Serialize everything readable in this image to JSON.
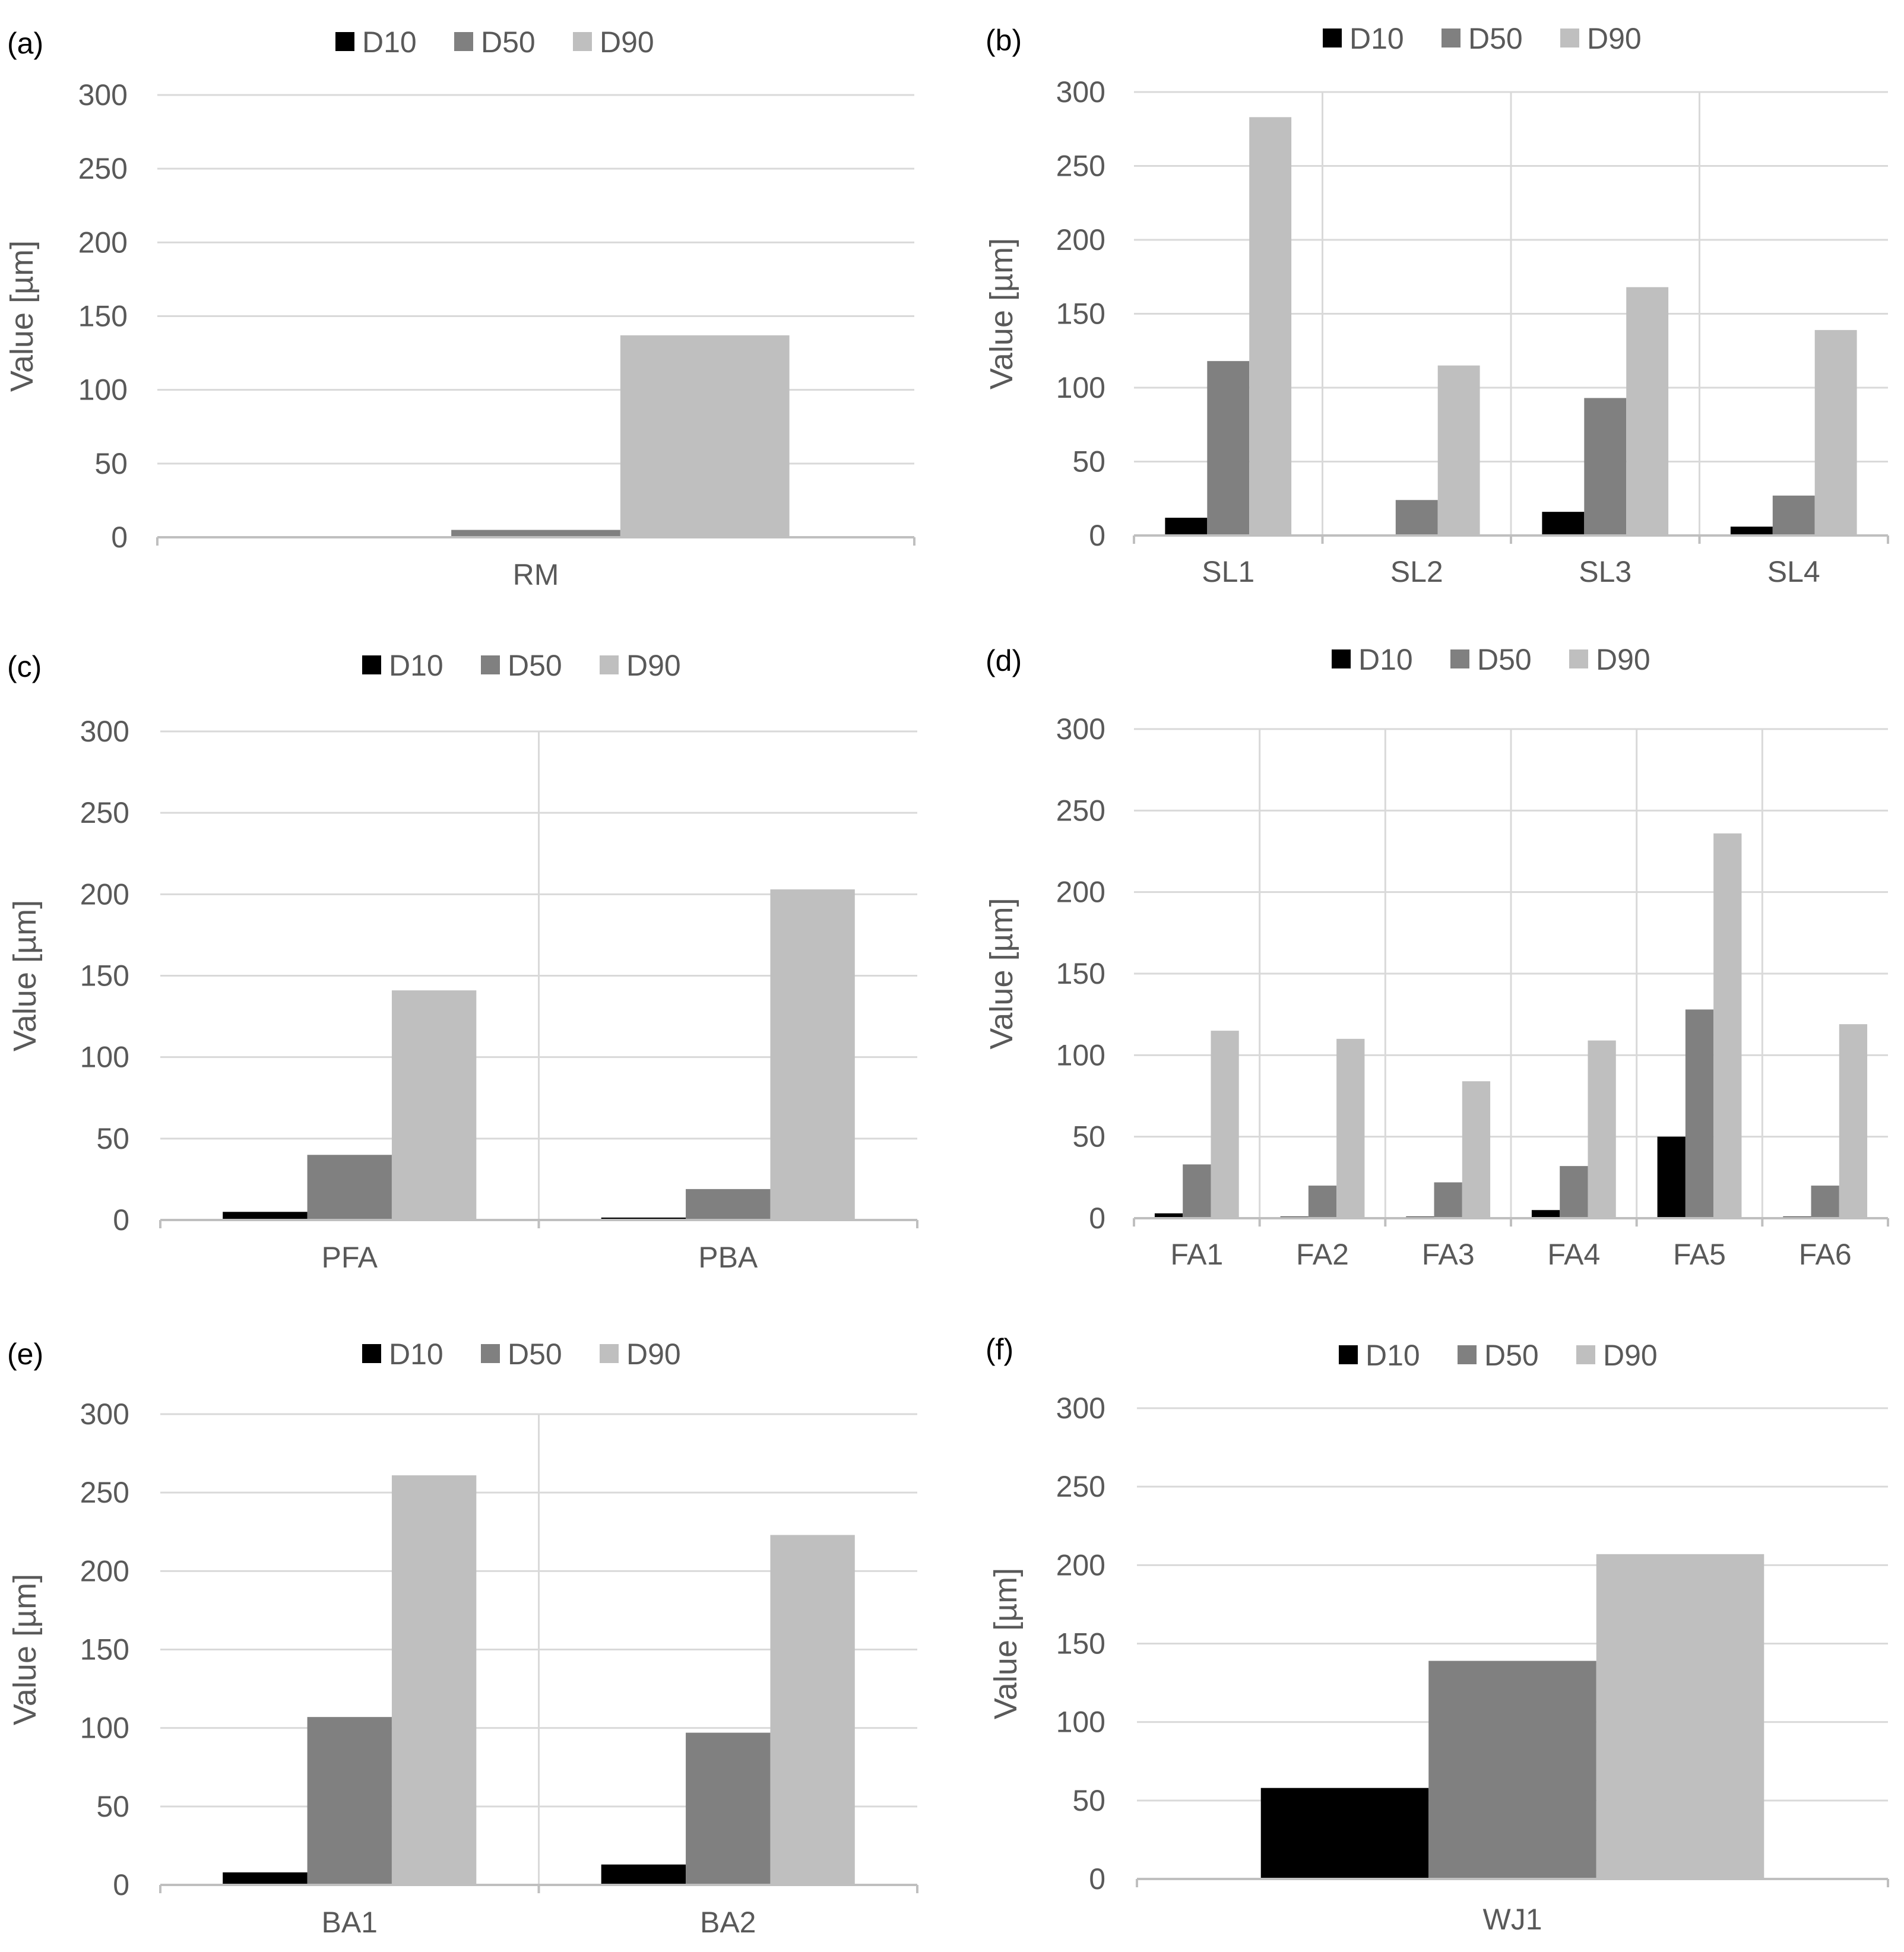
{
  "series_names": [
    "D10",
    "D50",
    "D90"
  ],
  "colors": {
    "D10": "#000000",
    "D50": "#808080",
    "D90": "#bfbfbf",
    "axis": "#bfbfbf",
    "grid": "#d9d9d9",
    "text": "#595959",
    "label": "#000000"
  },
  "chart_data": [
    {
      "panel": "(a)",
      "type": "bar",
      "ylabel": "Value [µm]",
      "ylim": [
        0,
        300
      ],
      "yticks": [
        0,
        50,
        100,
        150,
        200,
        250,
        300
      ],
      "legend": "top",
      "grid": "horizontal",
      "categories": [
        "RM"
      ],
      "series": [
        {
          "name": "D10",
          "values": [
            0.4
          ]
        },
        {
          "name": "D50",
          "values": [
            5
          ]
        },
        {
          "name": "D90",
          "values": [
            137
          ]
        }
      ]
    },
    {
      "panel": "(b)",
      "type": "bar",
      "ylabel": "Value [µm]",
      "ylim": [
        0,
        300
      ],
      "yticks": [
        0,
        50,
        100,
        150,
        200,
        250,
        300
      ],
      "legend": "top",
      "grid": "horizontal and vertical",
      "categories": [
        "SL1",
        "SL2",
        "SL3",
        "SL4"
      ],
      "series": [
        {
          "name": "D10",
          "values": [
            12,
            0.5,
            16,
            6
          ]
        },
        {
          "name": "D50",
          "values": [
            118,
            24,
            93,
            27
          ]
        },
        {
          "name": "D90",
          "values": [
            283,
            115,
            168,
            139
          ]
        }
      ]
    },
    {
      "panel": "(c)",
      "type": "bar",
      "ylabel": "Value [µm]",
      "ylim": [
        0,
        300
      ],
      "yticks": [
        0,
        50,
        100,
        150,
        200,
        250,
        300
      ],
      "legend": "top",
      "grid": "horizontal and vertical",
      "categories": [
        "PFA",
        "PBA"
      ],
      "series": [
        {
          "name": "D10",
          "values": [
            5,
            1.5
          ]
        },
        {
          "name": "D50",
          "values": [
            40,
            19
          ]
        },
        {
          "name": "D90",
          "values": [
            141,
            203
          ]
        }
      ]
    },
    {
      "panel": "(d)",
      "type": "bar",
      "ylabel": "Value [µm]",
      "ylim": [
        0,
        300
      ],
      "yticks": [
        0,
        50,
        100,
        150,
        200,
        250,
        300
      ],
      "legend": "top",
      "grid": "horizontal and vertical",
      "categories": [
        "FA1",
        "FA2",
        "FA3",
        "FA4",
        "FA5",
        "FA6"
      ],
      "series": [
        {
          "name": "D10",
          "values": [
            3,
            1,
            1,
            5,
            50,
            1
          ]
        },
        {
          "name": "D50",
          "values": [
            33,
            20,
            22,
            32,
            128,
            20
          ]
        },
        {
          "name": "D90",
          "values": [
            115,
            110,
            84,
            109,
            236,
            119
          ]
        }
      ]
    },
    {
      "panel": "(e)",
      "type": "bar",
      "ylabel": "Value [µm]",
      "ylim": [
        0,
        300
      ],
      "yticks": [
        0,
        50,
        100,
        150,
        200,
        250,
        300
      ],
      "legend": "top",
      "grid": "horizontal and vertical",
      "categories": [
        "BA1",
        "BA2"
      ],
      "series": [
        {
          "name": "D10",
          "values": [
            8,
            13
          ]
        },
        {
          "name": "D50",
          "values": [
            107,
            97
          ]
        },
        {
          "name": "D90",
          "values": [
            261,
            223
          ]
        }
      ]
    },
    {
      "panel": "(f)",
      "type": "bar",
      "ylabel": "Value [µm]",
      "ylim": [
        0,
        300
      ],
      "yticks": [
        0,
        50,
        100,
        150,
        200,
        250,
        300
      ],
      "legend": "top",
      "grid": "horizontal",
      "categories": [
        "WJ1"
      ],
      "series": [
        {
          "name": "D10",
          "values": [
            58
          ]
        },
        {
          "name": "D50",
          "values": [
            139
          ]
        },
        {
          "name": "D90",
          "values": [
            207
          ]
        }
      ]
    }
  ]
}
